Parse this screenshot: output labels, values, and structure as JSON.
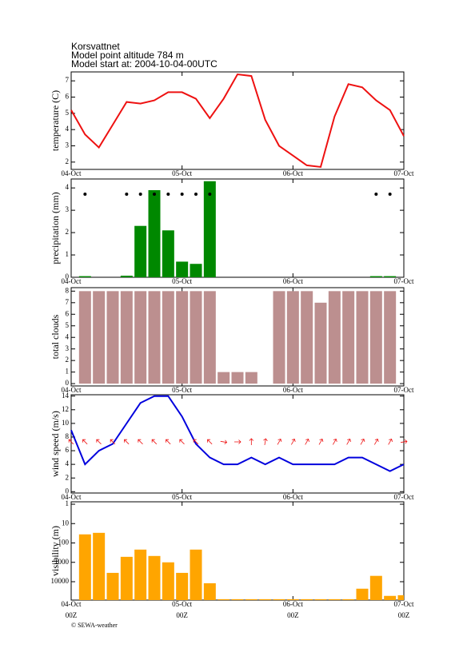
{
  "header": {
    "station": "Korsvattnet",
    "altitude": "Model point altitude  784 m",
    "start": "Model start at: 2004-10-04-00UTC"
  },
  "footer": "© SEWA-weather",
  "chart_data": [
    {
      "type": "line",
      "ylabel": "temperature (C)",
      "color": "#ee1111",
      "x": [
        0,
        3,
        6,
        9,
        12,
        15,
        18,
        21,
        24,
        27,
        30,
        33,
        36,
        39,
        42,
        45,
        48,
        51,
        54,
        57,
        60,
        63,
        66,
        69,
        72
      ],
      "values": [
        5.2,
        3.7,
        2.9,
        4.3,
        5.7,
        5.6,
        5.8,
        6.3,
        6.3,
        5.9,
        4.7,
        5.9,
        7.4,
        7.3,
        4.6,
        3.0,
        2.4,
        1.8,
        1.7,
        4.8,
        6.8,
        6.6,
        5.8,
        5.2,
        3.6
      ],
      "xlim": [
        0,
        72
      ],
      "xticks": [
        {
          "value": 0,
          "label": "04-Oct"
        },
        {
          "value": 24,
          "label": "05-Oct"
        },
        {
          "value": 48,
          "label": "06-Oct"
        },
        {
          "value": 72,
          "label": "07-Oct"
        }
      ],
      "ylim": [
        1.55,
        7.55
      ],
      "yticks": [
        2,
        3,
        4,
        5,
        6,
        7
      ]
    },
    {
      "type": "bar",
      "ylabel": "precipitation (mm)",
      "color": "#008800",
      "markers": true,
      "x": [
        3,
        6,
        9,
        12,
        15,
        18,
        21,
        24,
        27,
        30,
        33,
        36,
        39,
        42,
        45,
        48,
        51,
        54,
        57,
        60,
        63,
        66,
        69
      ],
      "values": [
        0.05,
        0,
        0,
        0.07,
        2.3,
        3.9,
        2.1,
        0.7,
        0.6,
        4.3,
        0,
        0,
        0,
        0,
        0,
        0,
        0,
        0,
        0,
        0,
        0,
        0.05,
        0.05
      ],
      "xlim": [
        0,
        72
      ],
      "xticks": [
        {
          "value": 0,
          "label": "04-Oct"
        },
        {
          "value": 24,
          "label": "05-Oct"
        },
        {
          "value": 48,
          "label": "06-Oct"
        },
        {
          "value": 72,
          "label": "07-Oct"
        }
      ],
      "ylim": [
        0,
        4.4
      ],
      "yticks": [
        0,
        1,
        2,
        3,
        4
      ]
    },
    {
      "type": "bar",
      "ylabel": "total clouds",
      "color": "#bc8f8f",
      "x": [
        3,
        6,
        9,
        12,
        15,
        18,
        21,
        24,
        27,
        30,
        33,
        36,
        39,
        42,
        45,
        48,
        51,
        54,
        57,
        60,
        63,
        66,
        69
      ],
      "values": [
        8,
        8,
        8,
        8,
        8,
        8,
        8,
        8,
        8,
        8,
        1,
        1,
        1,
        0,
        8,
        8,
        8,
        7,
        8,
        8,
        8,
        8,
        8
      ],
      "xlim": [
        0,
        72
      ],
      "xticks": [
        {
          "value": 0,
          "label": "04-Oct"
        },
        {
          "value": 24,
          "label": "05-Oct"
        },
        {
          "value": 48,
          "label": "06-Oct"
        },
        {
          "value": 72,
          "label": "07-Oct"
        }
      ],
      "ylim": [
        -0.2,
        8.3
      ],
      "yticks": [
        0,
        1,
        2,
        3,
        4,
        5,
        6,
        7,
        8
      ]
    },
    {
      "type": "line",
      "ylabel": "wind speed (m/s)",
      "color": "#0000dd",
      "arrow_color": "#ee1111",
      "x": [
        0,
        3,
        6,
        9,
        12,
        15,
        18,
        21,
        24,
        27,
        30,
        33,
        36,
        39,
        42,
        45,
        48,
        51,
        54,
        57,
        60,
        63,
        66,
        69,
        72
      ],
      "values": [
        9,
        4,
        6,
        7,
        10,
        13,
        14,
        14,
        11,
        7,
        5,
        4,
        4,
        5,
        4,
        5,
        4,
        4,
        4,
        4,
        5,
        5,
        4,
        3,
        4
      ],
      "directions": [
        315,
        315,
        315,
        315,
        315,
        315,
        315,
        315,
        315,
        315,
        315,
        100,
        90,
        0,
        10,
        30,
        30,
        30,
        30,
        30,
        30,
        30,
        30,
        30,
        80
      ],
      "xlim": [
        0,
        72
      ],
      "xticks": [
        {
          "value": 0,
          "label": "04-Oct"
        },
        {
          "value": 24,
          "label": "05-Oct"
        },
        {
          "value": 48,
          "label": "06-Oct"
        },
        {
          "value": 72,
          "label": "07-Oct"
        }
      ],
      "ylim": [
        -0.2,
        14.2
      ],
      "yticks": [
        0,
        2,
        4,
        6,
        8,
        10,
        12,
        14
      ]
    },
    {
      "type": "bar",
      "ylabel": "visibility (m)",
      "color": "#ffa500",
      "log": true,
      "inverted": true,
      "x": [
        3,
        6,
        9,
        12,
        15,
        18,
        21,
        24,
        27,
        30,
        33,
        36,
        39,
        42,
        45,
        48,
        51,
        54,
        57,
        60,
        63,
        66,
        69,
        72
      ],
      "values": [
        36,
        30,
        3500,
        520,
        220,
        470,
        1000,
        3500,
        220,
        12000,
        80000,
        80000,
        80000,
        80000,
        80000,
        80000,
        80000,
        80000,
        80000,
        80000,
        23000,
        5000,
        54000,
        50000
      ],
      "xlim": [
        0,
        72
      ],
      "xticks": [
        {
          "value": 0,
          "label": "04-Oct"
        },
        {
          "value": 24,
          "label": "05-Oct"
        },
        {
          "value": 48,
          "label": "06-Oct"
        },
        {
          "value": 72,
          "label": "07-Oct"
        }
      ],
      "xsublabels": [
        "00Z",
        "00Z",
        "00Z",
        "00Z"
      ],
      "ylim": [
        0.75,
        89000
      ],
      "yticks": [
        1,
        10,
        100,
        1000,
        10000
      ]
    }
  ]
}
